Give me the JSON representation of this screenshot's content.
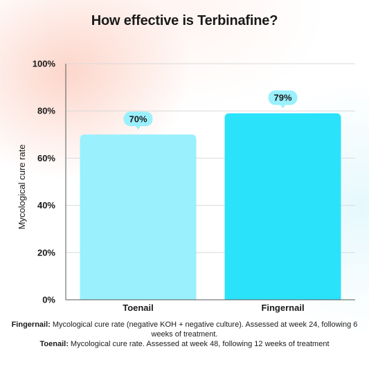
{
  "title": "How effective is Terbinafine?",
  "chart_data": {
    "type": "bar",
    "categories": [
      "Toenail",
      "Fingernail"
    ],
    "values": [
      70,
      79
    ],
    "data_labels": [
      "70%",
      "79%"
    ],
    "ylabel": "Mycological cure rate",
    "ylim": [
      0,
      100
    ],
    "yticks": [
      0,
      20,
      40,
      60,
      80,
      100
    ],
    "ytick_labels": [
      "0%",
      "20%",
      "40%",
      "60%",
      "80%",
      "100%"
    ],
    "grid": true,
    "colors": {
      "Toenail": "#9af0fd",
      "Fingernail": "#2ae3fb",
      "label_bubble": "#9af0fd"
    }
  },
  "notes": {
    "fingernail_term": "Fingernail:",
    "fingernail_text": "Mycological cure rate (negative KOH + negative culture). Assessed at week 24, following 6 weeks of treatment.",
    "toenail_term": "Toenail:",
    "toenail_text": "Mycological cure rate. Assessed at week 48, following 12 weeks of treatment"
  }
}
